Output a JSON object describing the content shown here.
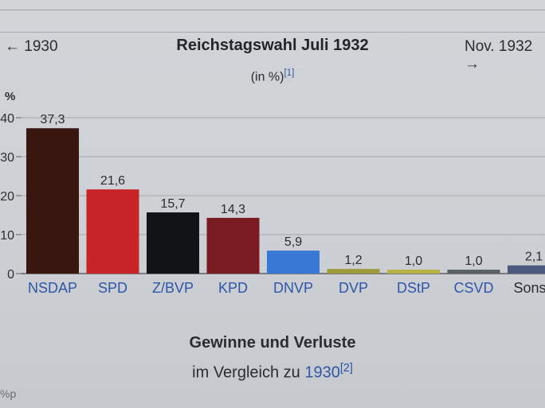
{
  "navigation": {
    "prev": "← 1930",
    "next": "Nov. 1932 →"
  },
  "header": {
    "title": "Reichstagswahl Juli 1932",
    "subtitle": "(in %)",
    "subtitle_ref": "[1]"
  },
  "chart_data": {
    "type": "bar",
    "ylabel": "%",
    "ylim": [
      0,
      40
    ],
    "yticks": [
      0,
      10,
      20,
      30,
      40
    ],
    "categories": [
      "NSDAP",
      "SPD",
      "Z/BVP",
      "KPD",
      "DNVP",
      "DVP",
      "DStP",
      "CSVD",
      "Sonst."
    ],
    "values": [
      37.3,
      21.6,
      15.7,
      14.3,
      5.9,
      1.2,
      1.0,
      1.0,
      2.1
    ],
    "value_labels": [
      "37,3",
      "21,6",
      "15,7",
      "14,3",
      "5,9",
      "1,2",
      "1,0",
      "1,0",
      "2,1"
    ],
    "colors": [
      "#3a1610",
      "#c8252a",
      "#121316",
      "#7a1a22",
      "#3a78d6",
      "#9c9a3a",
      "#b7b243",
      "#5a5f66",
      "#4a5a7e"
    ],
    "grid": true
  },
  "section": {
    "title": "Gewinne und Verluste",
    "subtitle": "im Vergleich zu",
    "year": "1930",
    "ref": "[2]"
  },
  "corner": {
    "text": "%p"
  }
}
